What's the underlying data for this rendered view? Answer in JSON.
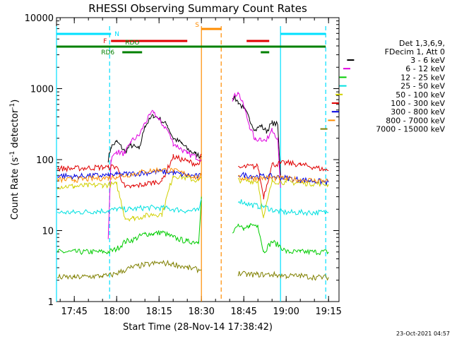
{
  "chart_data": {
    "type": "line",
    "title": "RHESSI Observing Summary Count Rates",
    "xlabel": "Start Time (28-Nov-14 17:38:42)",
    "ylabel_main": "Count Rate (s",
    "ylabel_sup1": "-1",
    "ylabel_mid": " detector",
    "ylabel_sup2": "-1",
    "ylabel_end": ")",
    "y_scale": "log",
    "ylim": [
      1,
      10000
    ],
    "xlim": [
      "17:38:42",
      "19:18:42"
    ],
    "y_ticks": [
      "1",
      "10",
      "100",
      "1000",
      "10000"
    ],
    "x_ticks": [
      "17:45",
      "18:00",
      "18:15",
      "18:30",
      "18:45",
      "19:00",
      "19:15"
    ],
    "x_tick_times": [
      "17:45",
      "18:00",
      "18:15",
      "18:30",
      "18:45",
      "19:00",
      "19:15"
    ],
    "legend_header": [
      "Det 1,3,6,9,",
      "FDecim 1, Att 0"
    ],
    "legend_placement": "right",
    "timestamp": "23-Oct-2021 04:57",
    "series": [
      {
        "name": "3 - 6 keV",
        "color": "#000000",
        "x": [
          "17:57",
          "17:58",
          "18:00",
          "18:03",
          "18:05",
          "18:08",
          "18:10",
          "18:13",
          "18:15",
          "18:18",
          "18:20",
          "18:23",
          "18:25",
          "18:28",
          "18:30",
          "18:40",
          "18:41",
          "18:43",
          "18:45",
          "18:47",
          "18:49",
          "18:51",
          "18:53",
          "18:55",
          "18:57",
          "18:58"
        ],
        "y": [
          100,
          150,
          180,
          130,
          160,
          140,
          300,
          420,
          380,
          300,
          200,
          170,
          140,
          120,
          110,
          null,
          780,
          650,
          520,
          380,
          260,
          300,
          250,
          330,
          310,
          60
        ]
      },
      {
        "name": "6 - 12 keV",
        "color": "#e000e0",
        "x": [
          "17:57",
          "17:58",
          "18:00",
          "18:03",
          "18:05",
          "18:08",
          "18:10",
          "18:13",
          "18:15",
          "18:18",
          "18:20",
          "18:23",
          "18:25",
          "18:28",
          "18:30",
          "18:40",
          "18:41",
          "18:43",
          "18:45",
          "18:47",
          "18:49",
          "18:51",
          "18:53",
          "18:55",
          "18:57",
          "18:58"
        ],
        "y": [
          8,
          100,
          130,
          120,
          180,
          220,
          330,
          480,
          360,
          260,
          170,
          140,
          120,
          110,
          100,
          null,
          720,
          900,
          560,
          300,
          190,
          200,
          180,
          280,
          190,
          40
        ]
      },
      {
        "name": "12 - 25 keV",
        "color": "#00cc00",
        "x": [
          "17:39",
          "17:55",
          "17:57",
          "18:00",
          "18:03",
          "18:06",
          "18:10",
          "18:13",
          "18:16",
          "18:20",
          "18:25",
          "18:29",
          "18:30",
          "18:40",
          "18:41",
          "18:43",
          "18:45",
          "18:47",
          "18:50",
          "18:52",
          "18:55",
          "18:58",
          "19:00",
          "19:05",
          "19:10",
          "19:15"
        ],
        "y": [
          5,
          5,
          5,
          5.5,
          7,
          7.5,
          9,
          9,
          9.5,
          8,
          7,
          7,
          30,
          null,
          9,
          12,
          10,
          12,
          12,
          5,
          7,
          6,
          5,
          5,
          5,
          5
        ]
      },
      {
        "name": "25 - 50 keV",
        "color": "#00e0e0",
        "x": [
          "17:39",
          "17:45",
          "17:55",
          "17:57",
          "18:00",
          "18:05",
          "18:10",
          "18:15",
          "18:20",
          "18:25",
          "18:29",
          "18:30",
          "18:40",
          "18:43",
          "18:46",
          "18:50",
          "18:52",
          "18:56",
          "19:00",
          "19:05",
          "19:10",
          "19:15"
        ],
        "y": [
          18,
          18,
          19,
          19,
          20,
          20,
          21,
          21,
          20,
          19,
          19,
          28,
          null,
          27,
          24,
          22,
          22,
          19,
          18,
          18,
          18,
          18
        ],
        "extra_flat_before": 5
      },
      {
        "name": "50 - 100 keV",
        "color": "#d0d000",
        "x": [
          "17:39",
          "17:45",
          "17:55",
          "17:57",
          "18:00",
          "18:03",
          "18:06",
          "18:10",
          "18:13",
          "18:16",
          "18:20",
          "18:25",
          "18:29",
          "18:30",
          "18:40",
          "18:43",
          "18:46",
          "18:50",
          "18:52",
          "18:55",
          "19:00",
          "19:05",
          "19:10",
          "19:15"
        ],
        "y": [
          42,
          42,
          44,
          44,
          45,
          15,
          15,
          16,
          17,
          17,
          60,
          55,
          50,
          55,
          null,
          52,
          50,
          50,
          15,
          50,
          48,
          47,
          46,
          45
        ]
      },
      {
        "name": "100 - 300 keV",
        "color": "#e00000",
        "x": [
          "17:39",
          "17:45",
          "17:55",
          "17:57",
          "18:00",
          "18:03",
          "18:06",
          "18:10",
          "18:13",
          "18:16",
          "18:20",
          "18:25",
          "18:29",
          "18:30",
          "18:40",
          "18:43",
          "18:46",
          "18:50",
          "18:52",
          "18:55",
          "19:00",
          "19:05",
          "19:10",
          "19:15"
        ],
        "y": [
          75,
          75,
          78,
          78,
          80,
          40,
          42,
          45,
          48,
          50,
          110,
          95,
          85,
          120,
          null,
          75,
          80,
          80,
          30,
          85,
          90,
          85,
          78,
          70
        ]
      },
      {
        "name": "300 - 800 keV",
        "color": "#0000e0",
        "x": [
          "17:39",
          "17:45",
          "17:55",
          "17:57",
          "18:00",
          "18:05",
          "18:10",
          "18:15",
          "18:20",
          "18:25",
          "18:29",
          "18:30",
          "18:40",
          "18:43",
          "18:46",
          "18:50",
          "18:55",
          "19:00",
          "19:05",
          "19:10",
          "19:15"
        ],
        "y": [
          60,
          58,
          60,
          60,
          62,
          63,
          65,
          68,
          65,
          60,
          58,
          60,
          null,
          62,
          60,
          58,
          58,
          55,
          52,
          50,
          48
        ]
      },
      {
        "name": "800 - 7000 keV",
        "color": "#ff8c00",
        "x": [
          "17:39",
          "17:45",
          "17:55",
          "17:57",
          "18:00",
          "18:05",
          "18:10",
          "18:15",
          "18:20",
          "18:25",
          "18:29",
          "18:30",
          "18:40",
          "18:43",
          "18:46",
          "18:50",
          "18:55",
          "19:00",
          "19:05",
          "19:10",
          "19:15"
        ],
        "y": [
          52,
          52,
          55,
          55,
          58,
          62,
          68,
          72,
          70,
          62,
          55,
          60,
          null,
          55,
          55,
          55,
          55,
          54,
          52,
          51,
          50
        ]
      },
      {
        "name": "7000 - 15000 keV",
        "color": "#808000",
        "x": [
          "17:39",
          "17:45",
          "17:55",
          "17:57",
          "18:00",
          "18:05",
          "18:10",
          "18:15",
          "18:20",
          "18:25",
          "18:29",
          "18:30",
          "18:40",
          "18:43",
          "18:46",
          "18:50",
          "18:55",
          "19:00",
          "19:05",
          "19:10",
          "19:15"
        ],
        "y": [
          2.2,
          2.2,
          2.3,
          2.3,
          2.5,
          3,
          3.3,
          3.5,
          3.4,
          3,
          2.8,
          2.8,
          null,
          2.5,
          2.4,
          2.4,
          2.4,
          2.3,
          2.3,
          2.2,
          2.2
        ]
      }
    ],
    "flag_bars": [
      {
        "label": "N",
        "color": "#00e0ff",
        "segments": [
          [
            "17:38:42",
            "17:58"
          ],
          [
            "18:58",
            "19:14"
          ]
        ],
        "level": "top"
      },
      {
        "label": "S",
        "color": "#ff8c00",
        "segments": [
          [
            "18:30",
            "18:37"
          ]
        ],
        "level": "upper"
      },
      {
        "label": "F",
        "color": "#e00000",
        "segments": [
          [
            "17:58",
            "18:25"
          ],
          [
            "18:46",
            "18:54"
          ]
        ],
        "level": "mid"
      },
      {
        "label": "RDO",
        "color": "#008000",
        "segments": [
          [
            "17:38:42",
            "19:14"
          ]
        ],
        "level": "low"
      },
      {
        "label": "RD6",
        "color": "#008000",
        "segments": [
          [
            "18:02",
            "18:09"
          ],
          [
            "18:51",
            "18:54"
          ]
        ],
        "level": "lowest"
      }
    ],
    "vertical_lines": [
      {
        "time": "17:38:42",
        "color": "#00e0ff",
        "style": "solid"
      },
      {
        "time": "17:57:30",
        "color": "#00e0ff",
        "style": "dashed"
      },
      {
        "time": "18:30",
        "color": "#ff8c00",
        "style": "solid"
      },
      {
        "time": "18:37",
        "color": "#ff8c00",
        "style": "dashed"
      },
      {
        "time": "18:58",
        "color": "#00e0ff",
        "style": "solid"
      },
      {
        "time": "19:14",
        "color": "#00e0ff",
        "style": "dashed"
      }
    ]
  }
}
